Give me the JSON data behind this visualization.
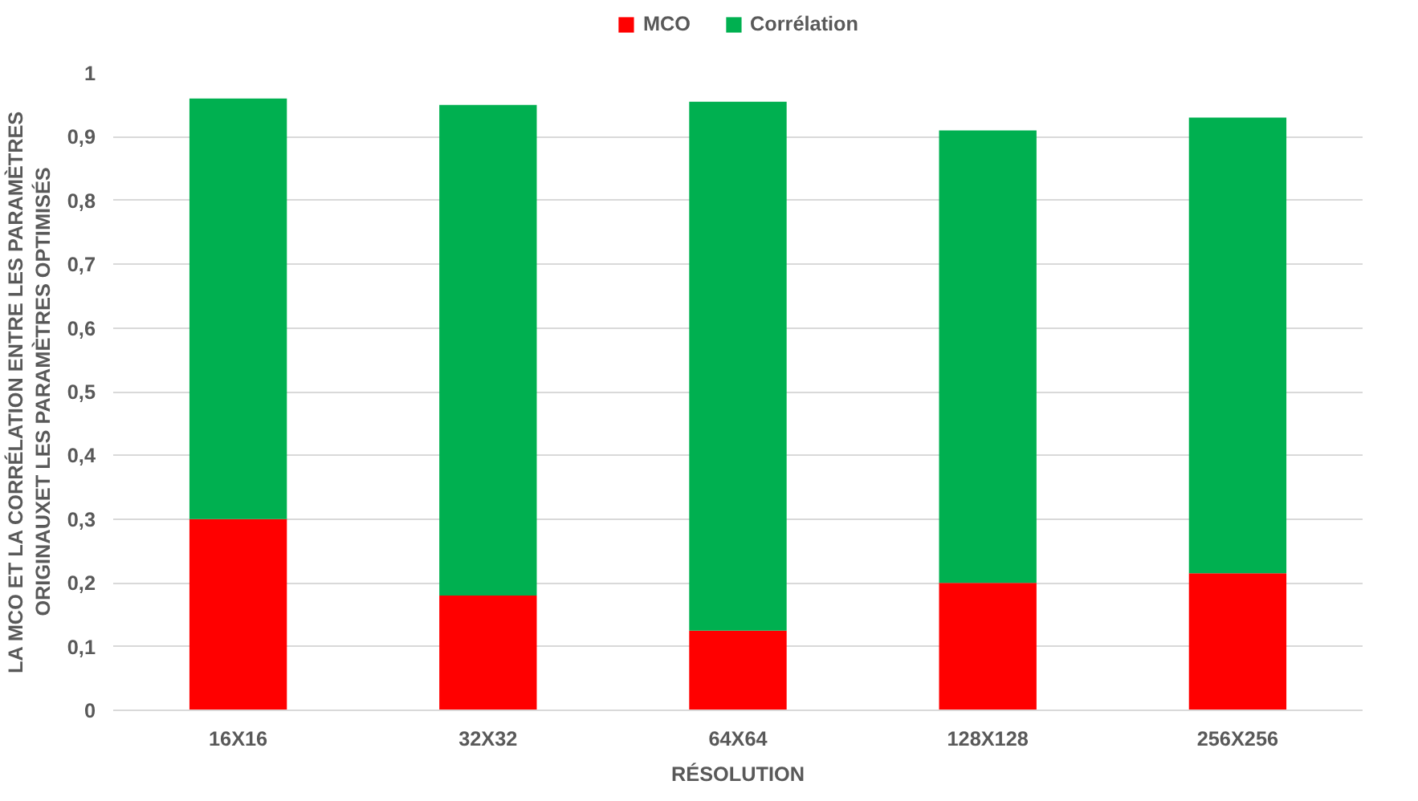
{
  "chart_data": {
    "type": "bar",
    "stacked": true,
    "xlabel": "RÉSOLUTION",
    "ylabel": "LA MCO ET LA CORRÉLATION ENTRE LES PARAMÈTRES\nORIGINAUXET LES PARAMÈTRES OPTIMISÉS",
    "categories": [
      "16X16",
      "32X32",
      "64X64",
      "128X128",
      "256X256"
    ],
    "series": [
      {
        "name": "MCO",
        "color": "#ff0000",
        "values": [
          0.3,
          0.18,
          0.125,
          0.2,
          0.215
        ]
      },
      {
        "name": "Corrélation",
        "color": "#00b050",
        "values": [
          0.66,
          0.77,
          0.83,
          0.71,
          0.715
        ]
      }
    ],
    "ylim": [
      0,
      1
    ],
    "yticks": [
      {
        "value": 0,
        "label": "0"
      },
      {
        "value": 0.1,
        "label": "0,1"
      },
      {
        "value": 0.2,
        "label": "0,2"
      },
      {
        "value": 0.3,
        "label": "0,3"
      },
      {
        "value": 0.4,
        "label": "0,4"
      },
      {
        "value": 0.5,
        "label": "0,5"
      },
      {
        "value": 0.6,
        "label": "0,6"
      },
      {
        "value": 0.7,
        "label": "0,7"
      },
      {
        "value": 0.8,
        "label": "0,8"
      },
      {
        "value": 0.9,
        "label": "0,9"
      },
      {
        "value": 1,
        "label": "1"
      }
    ],
    "grid": "y",
    "legend": "top"
  }
}
